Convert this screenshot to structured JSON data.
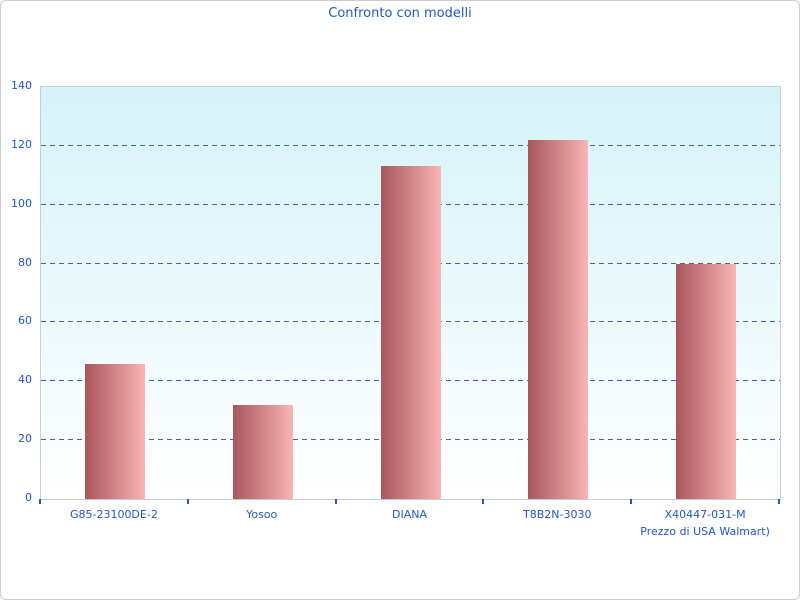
{
  "colors": {
    "text_blue": "#2257c5",
    "grid_blue": "#3a64c8",
    "bar_start": "#aa555c",
    "bar_end": "#f9b5b5",
    "plot_bg_top": "#d6f3f9",
    "plot_bg_bottom": "#ffffff",
    "plot_border": "#c3ced6",
    "page_border": "#c9cdd2"
  },
  "chart_data": {
    "type": "bar",
    "title": "Confronto con modelli",
    "categories": [
      "G85-23100DE-2",
      "Yosoo",
      "DIANA",
      "T8B2N-3030",
      "X40447-031-M"
    ],
    "category_sublabels": [
      "",
      "",
      "",
      "",
      "Prezzo di USA Walmart)"
    ],
    "values": [
      46,
      32,
      113,
      122,
      80
    ],
    "xlabel": "",
    "ylabel": "",
    "ylim": [
      0,
      140
    ],
    "yticks": [
      0,
      20,
      40,
      60,
      80,
      100,
      120,
      140
    ],
    "grid": "horizontal-dashed",
    "legend": "none",
    "bar_color": "red-pink horizontal gradient",
    "plot_background": "light cyan to white vertical gradient"
  }
}
